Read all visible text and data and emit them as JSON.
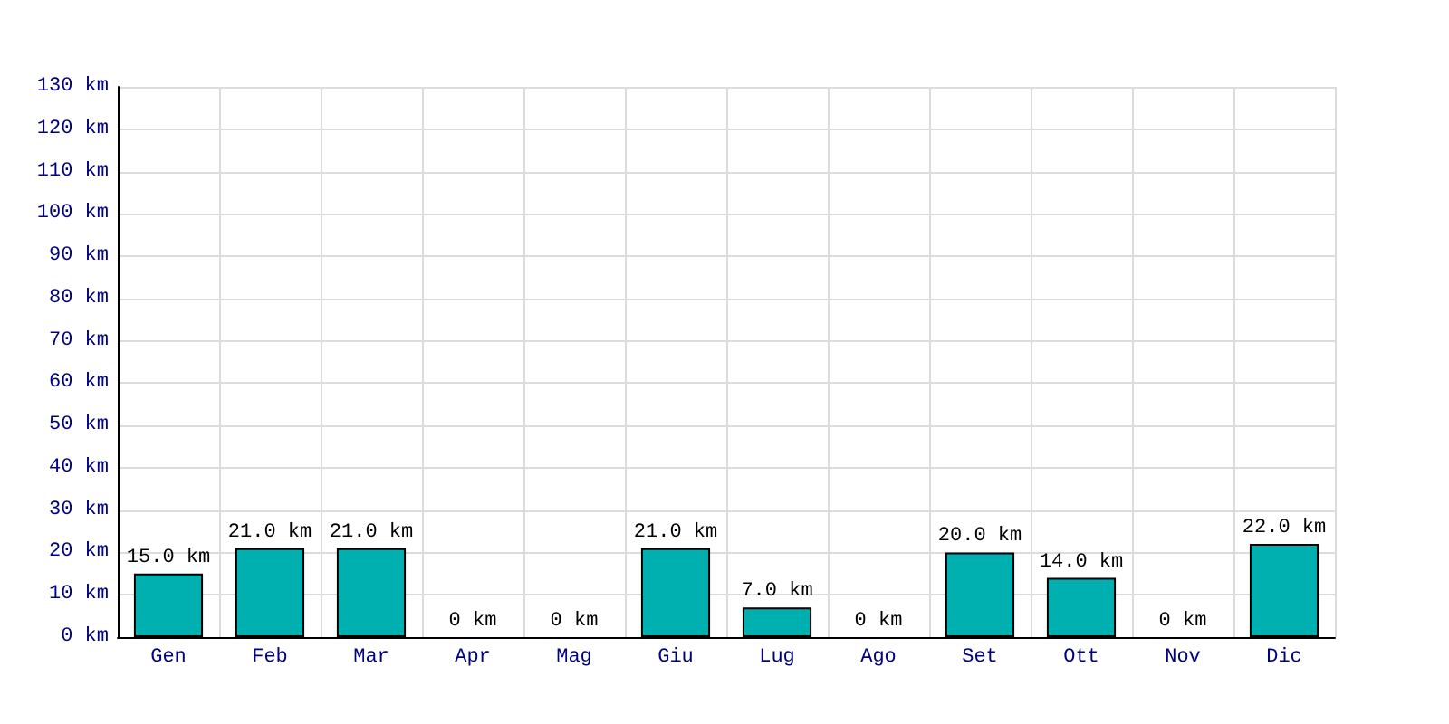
{
  "chart_data": {
    "type": "bar",
    "categories": [
      "Gen",
      "Feb",
      "Mar",
      "Apr",
      "Mag",
      "Giu",
      "Lug",
      "Ago",
      "Set",
      "Ott",
      "Nov",
      "Dic"
    ],
    "values": [
      15,
      21,
      21,
      0,
      0,
      21,
      7,
      0,
      20,
      14,
      0,
      22
    ],
    "value_labels": [
      "15.0 km",
      "21.0 km",
      "21.0 km",
      "0 km",
      "0 km",
      "21.0 km",
      "7.0 km",
      "0 km",
      "20.0 km",
      "14.0 km",
      "0 km",
      "22.0 km"
    ],
    "color": "#00b0b0",
    "ylim": [
      0,
      130
    ],
    "yticks": [
      {
        "value": 0,
        "label": "0 km"
      },
      {
        "value": 10,
        "label": "10 km"
      },
      {
        "value": 20,
        "label": "20 km"
      },
      {
        "value": 30,
        "label": "30 km"
      },
      {
        "value": 40,
        "label": "40 km"
      },
      {
        "value": 50,
        "label": "50 km"
      },
      {
        "value": 60,
        "label": "60 km"
      },
      {
        "value": 70,
        "label": "70 km"
      },
      {
        "value": 80,
        "label": "80 km"
      },
      {
        "value": 90,
        "label": "90 km"
      },
      {
        "value": 100,
        "label": "100 km"
      },
      {
        "value": 110,
        "label": "110 km"
      },
      {
        "value": 120,
        "label": "120 km"
      },
      {
        "value": 130,
        "label": "130 km"
      }
    ],
    "grid": true
  }
}
